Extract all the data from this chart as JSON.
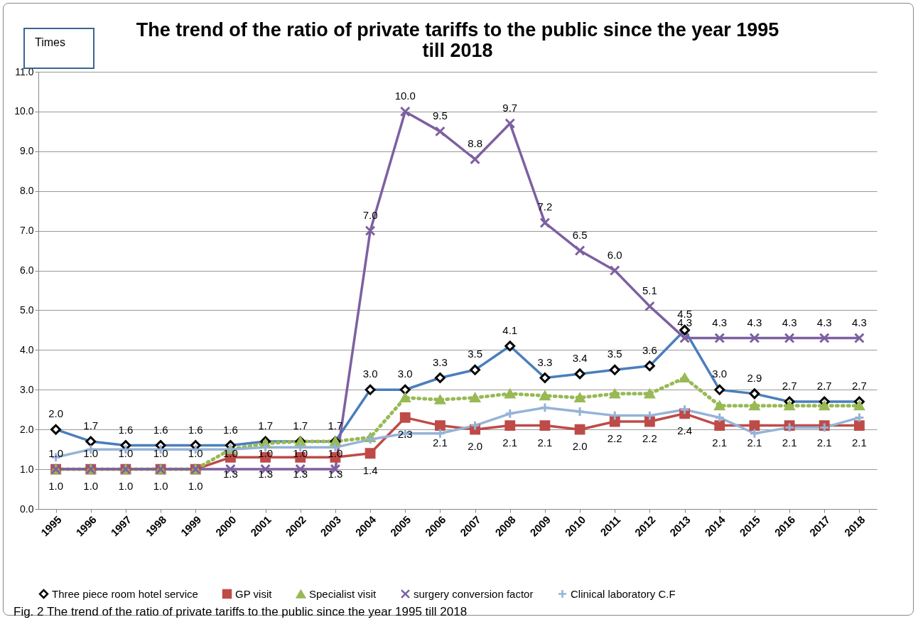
{
  "chart_data": {
    "type": "line",
    "title": "The trend of the ratio of private tariffs to the public since the year 1995 till 2018",
    "ylabel": "Times",
    "categories": [
      "1995",
      "1996",
      "1997",
      "1998",
      "1999",
      "2000",
      "2001",
      "2002",
      "2003",
      "2004",
      "2005",
      "2006",
      "2007",
      "2008",
      "2009",
      "2010",
      "2011",
      "2012",
      "2013",
      "2014",
      "2015",
      "2016",
      "2017",
      "2018"
    ],
    "series": [
      {
        "name": "Three piece room hotel service",
        "color": "#4a7ebb",
        "marker": "diamond",
        "line_style": "solid",
        "values": [
          2.0,
          1.7,
          1.6,
          1.6,
          1.6,
          1.6,
          1.7,
          1.7,
          1.7,
          3.0,
          3.0,
          3.3,
          3.5,
          4.1,
          3.3,
          3.4,
          3.5,
          3.6,
          4.5,
          3.0,
          2.9,
          2.7,
          2.7,
          2.7
        ],
        "value_labels": [
          "2.0",
          "1.7",
          "1.6",
          "1.6",
          "1.6",
          "1.6",
          "1.7",
          "1.7",
          "1.7",
          "3.0",
          "3.0",
          "3.3",
          "3.5",
          "4.1",
          "3.3",
          "3.4",
          "3.5",
          "3.6",
          "4.5",
          "3.0",
          "2.9",
          "2.7",
          "2.7",
          "2.7"
        ]
      },
      {
        "name": "GP visit",
        "color": "#be4b48",
        "marker": "square",
        "line_style": "solid",
        "values": [
          1.0,
          1.0,
          1.0,
          1.0,
          1.0,
          1.3,
          1.3,
          1.3,
          1.3,
          1.4,
          2.3,
          2.1,
          2.0,
          2.1,
          2.1,
          2.0,
          2.2,
          2.2,
          2.4,
          2.1,
          2.1,
          2.1,
          2.1,
          2.1
        ],
        "value_labels": [
          "1.0",
          "1.0",
          "1.0",
          "1.0",
          "1.0",
          "1.3",
          "1.3",
          "1.3",
          "1.3",
          "1.4",
          "2.3",
          "2.1",
          "2.0",
          "2.1",
          "2.1",
          "2.0",
          "2.2",
          "2.2",
          "2.4",
          "2.1",
          "2.1",
          "2.1",
          "2.1",
          "2.1"
        ]
      },
      {
        "name": "Specialist visit",
        "color": "#98b954",
        "marker": "triangle",
        "line_style": "dotted",
        "values": [
          1.0,
          1.0,
          1.0,
          1.0,
          1.0,
          1.5,
          1.65,
          1.7,
          1.7,
          1.8,
          2.8,
          2.75,
          2.8,
          2.9,
          2.85,
          2.8,
          2.9,
          2.9,
          3.3,
          2.6,
          2.6,
          2.6,
          2.6,
          2.6
        ]
      },
      {
        "name": "surgery conversion factor",
        "color": "#7d60a0",
        "marker": "cross",
        "line_style": "solid",
        "values": [
          1.0,
          1.0,
          1.0,
          1.0,
          1.0,
          1.0,
          1.0,
          1.0,
          1.0,
          7.0,
          10.0,
          9.5,
          8.8,
          9.7,
          7.2,
          6.5,
          6.0,
          5.1,
          4.3,
          4.3,
          4.3,
          4.3,
          4.3,
          4.3
        ],
        "value_labels": [
          "1.0",
          "1.0",
          "1.0",
          "1.0",
          "1.0",
          "1.0",
          "1.0",
          "1.0",
          "1.0",
          "7.0",
          "10.0",
          "9.5",
          "8.8",
          "9.7",
          "7.2",
          "6.5",
          "6.0",
          "5.1",
          "4.3",
          "4.3",
          "4.3",
          "4.3",
          "4.3",
          "4.3"
        ]
      },
      {
        "name": "Clinical laboratory C.F",
        "color": "#95b3d7",
        "marker": "plus",
        "line_style": "solid",
        "values": [
          1.3,
          1.5,
          1.5,
          1.5,
          1.5,
          1.5,
          1.55,
          1.55,
          1.55,
          1.75,
          1.9,
          1.9,
          2.1,
          2.4,
          2.55,
          2.45,
          2.35,
          2.35,
          2.5,
          2.3,
          1.9,
          2.05,
          2.05,
          2.3
        ]
      }
    ],
    "ylim": [
      0,
      11
    ],
    "yticks": [
      {
        "value": 0,
        "label": "0.0"
      },
      {
        "value": 1,
        "label": "1.0"
      },
      {
        "value": 2,
        "label": "2.0"
      },
      {
        "value": 3,
        "label": "3.0"
      },
      {
        "value": 4,
        "label": "4.0"
      },
      {
        "value": 5,
        "label": "5.0"
      },
      {
        "value": 6,
        "label": "6.0"
      },
      {
        "value": 7,
        "label": "7.0"
      },
      {
        "value": 8,
        "label": "8.0"
      },
      {
        "value": 9,
        "label": "9.0"
      },
      {
        "value": 10,
        "label": "10.0"
      },
      {
        "value": 11,
        "label": "11.0"
      }
    ],
    "grid": "y",
    "legend": "bottom",
    "annotations": [
      "Fig. 2 The trend of the ratio of private tariffs to the public since the year 1995 till 2018"
    ]
  }
}
